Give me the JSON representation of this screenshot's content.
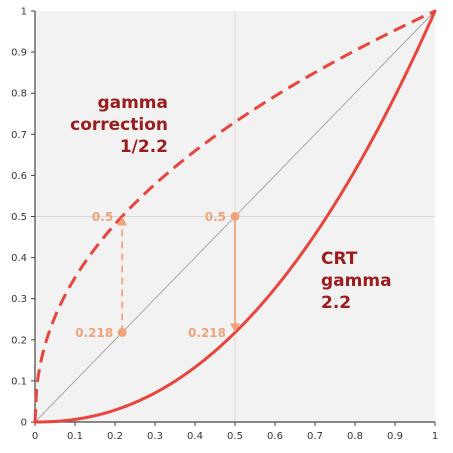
{
  "chart_data": {
    "type": "line",
    "title": "",
    "xlabel": "",
    "ylabel": "",
    "xlim": [
      0,
      1
    ],
    "ylim": [
      0,
      1
    ],
    "grid": true,
    "x_ticks": [
      "0",
      "0.1",
      "0.2",
      "0.3",
      "0.4",
      "0.5",
      "0.6",
      "0.7",
      "0.8",
      "0.9",
      "1"
    ],
    "y_ticks": [
      "0",
      "0.1",
      "0.2",
      "0.3",
      "0.4",
      "0.5",
      "0.6",
      "0.7",
      "0.8",
      "0.9",
      "1"
    ],
    "series": [
      {
        "name": "gamma correction 1/2.2",
        "label_lines": [
          "gamma",
          "correction",
          "1/2.2"
        ],
        "gamma": 0.4545,
        "style": "dashed",
        "color": "#e8453c"
      },
      {
        "name": "CRT gamma 2.2",
        "label_lines": [
          "CRT",
          "gamma",
          "2.2"
        ],
        "gamma": 2.2,
        "style": "solid",
        "color": "#e8453c"
      }
    ],
    "reference_line": {
      "from": [
        0,
        0
      ],
      "to": [
        1,
        1
      ],
      "color": "#a8a8a8"
    },
    "annotations": [
      {
        "x": 0.218,
        "y_from": 0.218,
        "y_to": 0.5,
        "style": "dashed",
        "label_from": "0.218",
        "label_to": "0.5"
      },
      {
        "x": 0.5,
        "y_from": 0.5,
        "y_to": 0.218,
        "style": "solid",
        "label_from": "0.5",
        "label_to": "0.218"
      }
    ],
    "colors": {
      "curve": "#e8453c",
      "annotation": "#f2a27a",
      "label": "#9b1c1c",
      "background": "#f2f2f2",
      "grid": "#d9d9d9"
    }
  }
}
